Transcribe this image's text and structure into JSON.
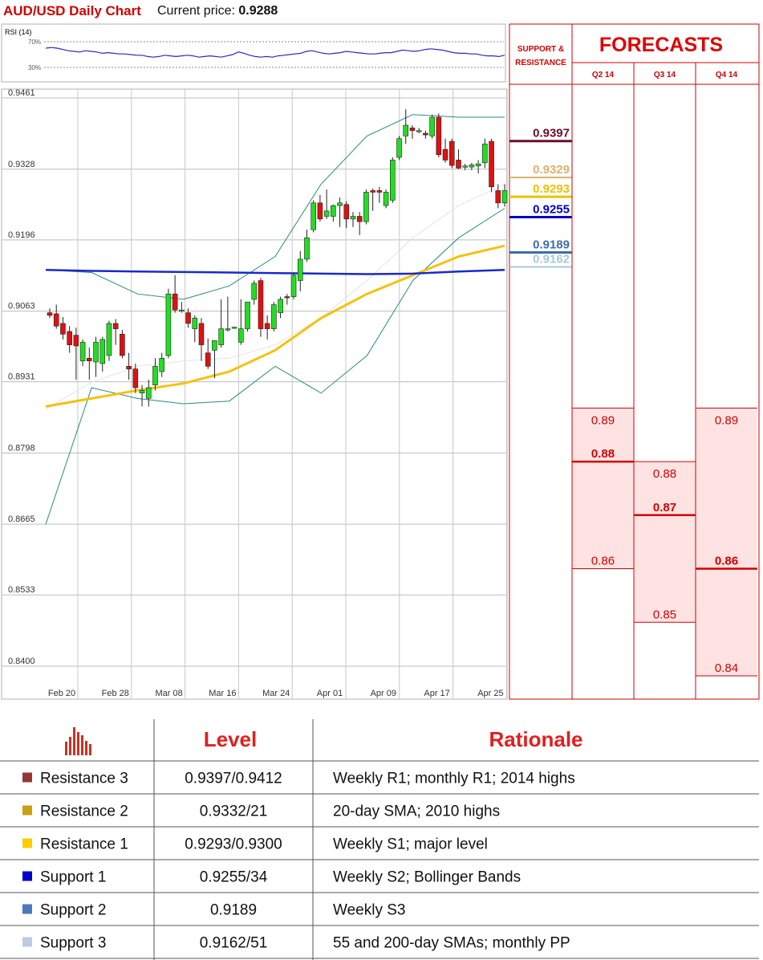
{
  "header": {
    "title": "AUD/USD Daily Chart",
    "price_label": "Current price:",
    "price_value": "0.9288"
  },
  "rsi": {
    "label": "RSI (14)",
    "levels": [
      "70%",
      "30%"
    ],
    "values": [
      60,
      61,
      60,
      58,
      56,
      55,
      54,
      56,
      55,
      54,
      52,
      53,
      52,
      51,
      51,
      50,
      49,
      49,
      47,
      46,
      47,
      49,
      48,
      47,
      48,
      49,
      48,
      46,
      47,
      48,
      47,
      46,
      48,
      50,
      54,
      52,
      49,
      47,
      46,
      47,
      46,
      48,
      49,
      50,
      51,
      52,
      55,
      56,
      54,
      52,
      51,
      52,
      53,
      55,
      54,
      53,
      52,
      51,
      51,
      52,
      53,
      53,
      55,
      57,
      56,
      55,
      56,
      58,
      59,
      58,
      57,
      55,
      53,
      52,
      52,
      51,
      51,
      49,
      48,
      48,
      47,
      49
    ]
  },
  "chart_data": {
    "type": "candlestick",
    "title": "AUD/USD Daily Chart",
    "y_ticks": [
      "0.9461",
      "0.9328",
      "0.9196",
      "0.9063",
      "0.8931",
      "0.8798",
      "0.8665",
      "0.8533",
      "0.8400"
    ],
    "ylim": [
      0.84,
      0.9461
    ],
    "x_ticks": [
      "Feb 20",
      "Feb 28",
      "Mar 08",
      "Mar 16",
      "Mar 24",
      "Apr 01",
      "Apr 09",
      "Apr 17",
      "Apr 25"
    ],
    "candles": [
      {
        "o": 0.906,
        "h": 0.9068,
        "l": 0.905,
        "c": 0.9055
      },
      {
        "o": 0.9058,
        "h": 0.9075,
        "l": 0.903,
        "c": 0.9035
      },
      {
        "o": 0.904,
        "h": 0.9052,
        "l": 0.901,
        "c": 0.902
      },
      {
        "o": 0.9025,
        "h": 0.9035,
        "l": 0.8985,
        "c": 0.9
      },
      {
        "o": 0.9018,
        "h": 0.9032,
        "l": 0.8935,
        "c": 0.8998
      },
      {
        "o": 0.897,
        "h": 0.901,
        "l": 0.896,
        "c": 0.9005
      },
      {
        "o": 0.8975,
        "h": 0.8995,
        "l": 0.8935,
        "c": 0.897
      },
      {
        "o": 0.8968,
        "h": 0.9015,
        "l": 0.894,
        "c": 0.9005
      },
      {
        "o": 0.8965,
        "h": 0.9015,
        "l": 0.895,
        "c": 0.901
      },
      {
        "o": 0.898,
        "h": 0.9045,
        "l": 0.897,
        "c": 0.904
      },
      {
        "o": 0.904,
        "h": 0.9048,
        "l": 0.9,
        "c": 0.903
      },
      {
        "o": 0.902,
        "h": 0.9028,
        "l": 0.8975,
        "c": 0.898
      },
      {
        "o": 0.896,
        "h": 0.8985,
        "l": 0.8935,
        "c": 0.8955
      },
      {
        "o": 0.8955,
        "h": 0.8965,
        "l": 0.891,
        "c": 0.892
      },
      {
        "o": 0.891,
        "h": 0.8925,
        "l": 0.8885,
        "c": 0.8915
      },
      {
        "o": 0.89,
        "h": 0.8935,
        "l": 0.8885,
        "c": 0.892
      },
      {
        "o": 0.8925,
        "h": 0.8975,
        "l": 0.8915,
        "c": 0.896
      },
      {
        "o": 0.895,
        "h": 0.8985,
        "l": 0.894,
        "c": 0.8975
      },
      {
        "o": 0.898,
        "h": 0.9105,
        "l": 0.8975,
        "c": 0.9095
      },
      {
        "o": 0.9095,
        "h": 0.913,
        "l": 0.906,
        "c": 0.9065
      },
      {
        "o": 0.9065,
        "h": 0.908,
        "l": 0.906,
        "c": 0.9065
      },
      {
        "o": 0.906,
        "h": 0.9068,
        "l": 0.9032,
        "c": 0.904
      },
      {
        "o": 0.903,
        "h": 0.9055,
        "l": 0.9005,
        "c": 0.905
      },
      {
        "o": 0.904,
        "h": 0.905,
        "l": 0.897,
        "c": 0.9
      },
      {
        "o": 0.8985,
        "h": 0.9012,
        "l": 0.8955,
        "c": 0.896
      },
      {
        "o": 0.899,
        "h": 0.9005,
        "l": 0.8938,
        "c": 0.9008
      },
      {
        "o": 0.9,
        "h": 0.9085,
        "l": 0.8995,
        "c": 0.903
      },
      {
        "o": 0.903,
        "h": 0.909,
        "l": 0.9025,
        "c": 0.903
      },
      {
        "o": 0.9032,
        "h": 0.9034,
        "l": 0.903,
        "c": 0.9033
      },
      {
        "o": 0.9005,
        "h": 0.9085,
        "l": 0.9,
        "c": 0.903
      },
      {
        "o": 0.903,
        "h": 0.908,
        "l": 0.9025,
        "c": 0.908
      },
      {
        "o": 0.9085,
        "h": 0.912,
        "l": 0.9075,
        "c": 0.9115
      },
      {
        "o": 0.912,
        "h": 0.9125,
        "l": 0.9015,
        "c": 0.903
      },
      {
        "o": 0.904,
        "h": 0.9055,
        "l": 0.901,
        "c": 0.903
      },
      {
        "o": 0.903,
        "h": 0.908,
        "l": 0.9025,
        "c": 0.9075
      },
      {
        "o": 0.906,
        "h": 0.909,
        "l": 0.905,
        "c": 0.9085
      },
      {
        "o": 0.909,
        "h": 0.9095,
        "l": 0.9075,
        "c": 0.9088
      },
      {
        "o": 0.909,
        "h": 0.9135,
        "l": 0.9085,
        "c": 0.913
      },
      {
        "o": 0.912,
        "h": 0.9175,
        "l": 0.91,
        "c": 0.916
      },
      {
        "o": 0.916,
        "h": 0.9215,
        "l": 0.9155,
        "c": 0.92
      },
      {
        "o": 0.9215,
        "h": 0.927,
        "l": 0.921,
        "c": 0.9265
      },
      {
        "o": 0.9265,
        "h": 0.928,
        "l": 0.923,
        "c": 0.9235
      },
      {
        "o": 0.924,
        "h": 0.929,
        "l": 0.9235,
        "c": 0.925
      },
      {
        "o": 0.924,
        "h": 0.9262,
        "l": 0.923,
        "c": 0.926
      },
      {
        "o": 0.926,
        "h": 0.9275,
        "l": 0.922,
        "c": 0.9265
      },
      {
        "o": 0.9262,
        "h": 0.9268,
        "l": 0.9218,
        "c": 0.9235
      },
      {
        "o": 0.9235,
        "h": 0.9248,
        "l": 0.922,
        "c": 0.924
      },
      {
        "o": 0.924,
        "h": 0.9248,
        "l": 0.9205,
        "c": 0.923
      },
      {
        "o": 0.923,
        "h": 0.929,
        "l": 0.9225,
        "c": 0.9285
      },
      {
        "o": 0.9288,
        "h": 0.9292,
        "l": 0.925,
        "c": 0.9285
      },
      {
        "o": 0.9288,
        "h": 0.9295,
        "l": 0.9265,
        "c": 0.9285
      },
      {
        "o": 0.926,
        "h": 0.929,
        "l": 0.9255,
        "c": 0.9285
      },
      {
        "o": 0.927,
        "h": 0.935,
        "l": 0.9265,
        "c": 0.9345
      },
      {
        "o": 0.935,
        "h": 0.939,
        "l": 0.9345,
        "c": 0.9385
      },
      {
        "o": 0.939,
        "h": 0.944,
        "l": 0.9375,
        "c": 0.941
      },
      {
        "o": 0.9405,
        "h": 0.941,
        "l": 0.9385,
        "c": 0.94
      },
      {
        "o": 0.94,
        "h": 0.9405,
        "l": 0.9395,
        "c": 0.94
      },
      {
        "o": 0.9395,
        "h": 0.94,
        "l": 0.9385,
        "c": 0.9392
      },
      {
        "o": 0.939,
        "h": 0.943,
        "l": 0.9385,
        "c": 0.9425
      },
      {
        "o": 0.9425,
        "h": 0.9432,
        "l": 0.935,
        "c": 0.9355
      },
      {
        "o": 0.9365,
        "h": 0.9385,
        "l": 0.934,
        "c": 0.9345
      },
      {
        "o": 0.938,
        "h": 0.9385,
        "l": 0.933,
        "c": 0.9335
      },
      {
        "o": 0.9345,
        "h": 0.9365,
        "l": 0.9328,
        "c": 0.933
      },
      {
        "o": 0.9332,
        "h": 0.9338,
        "l": 0.9326,
        "c": 0.9334
      },
      {
        "o": 0.9332,
        "h": 0.934,
        "l": 0.9326,
        "c": 0.9336
      },
      {
        "o": 0.9334,
        "h": 0.9345,
        "l": 0.932,
        "c": 0.9338
      },
      {
        "o": 0.934,
        "h": 0.9385,
        "l": 0.933,
        "c": 0.9375
      },
      {
        "o": 0.938,
        "h": 0.9385,
        "l": 0.9285,
        "c": 0.9295
      },
      {
        "o": 0.9288,
        "h": 0.93,
        "l": 0.9255,
        "c": 0.9265
      },
      {
        "o": 0.9265,
        "h": 0.93,
        "l": 0.9258,
        "c": 0.9288
      }
    ],
    "sma_thick_blue": [
      0.914,
      0.9138,
      0.9137,
      0.9136,
      0.9135,
      0.9134,
      0.9133,
      0.9132,
      0.9133,
      0.9137,
      0.914
    ],
    "sma_yellow": [
      0.8885,
      0.89,
      0.8915,
      0.8928,
      0.895,
      0.899,
      0.905,
      0.9095,
      0.913,
      0.9165,
      0.9185
    ],
    "sma_gray": [
      0.888,
      0.893,
      0.896,
      0.897,
      0.8975,
      0.9,
      0.905,
      0.912,
      0.92,
      0.926,
      0.93
    ],
    "bb_upper": [
      0.914,
      0.9135,
      0.9095,
      0.9085,
      0.911,
      0.9165,
      0.93,
      0.939,
      0.943,
      0.9425,
      0.9425
    ],
    "bb_lower": [
      0.8665,
      0.892,
      0.89,
      0.889,
      0.8895,
      0.896,
      0.891,
      0.898,
      0.912,
      0.92,
      0.9255
    ]
  },
  "levels_panel": {
    "title": "SUPPORT & RESISTANCE",
    "levels": [
      {
        "value": "0.9397",
        "color": "#6a0f2a"
      },
      {
        "value": "0.9329",
        "color": "#d9b26c"
      },
      {
        "value": "0.9293",
        "color": "#f0c000"
      },
      {
        "value": "0.9255",
        "color": "#0000cc"
      },
      {
        "value": "0.9189",
        "color": "#3c6ea8"
      },
      {
        "value": "0.9162",
        "color": "#a8c8de"
      }
    ]
  },
  "forecasts": {
    "title": "FORECASTS",
    "columns": [
      {
        "label": "Q2 14",
        "high": "0.89",
        "mid": "0.88",
        "low": "0.86"
      },
      {
        "label": "Q3 14",
        "high": "0.88",
        "mid": "0.87",
        "low": "0.85"
      },
      {
        "label": "Q4 14",
        "high": "0.89",
        "mid": "0.86",
        "low": "0.84"
      }
    ]
  },
  "table": {
    "headers": {
      "level": "Level",
      "rationale": "Rationale"
    },
    "rows": [
      {
        "name": "Resistance 3",
        "color": "#953735",
        "level": "0.9397/0.9412",
        "rationale": "Weekly R1; monthly R1; 2014 highs"
      },
      {
        "name": "Resistance 2",
        "color": "#c9a012",
        "level": "0.9332/21",
        "rationale": "20-day SMA; 2010 highs"
      },
      {
        "name": "Resistance 1",
        "color": "#ffcc00",
        "level": "0.9293/0.9300",
        "rationale": "Weekly S1; major level"
      },
      {
        "name": "Support 1",
        "color": "#0000cc",
        "level": "0.9255/34",
        "rationale": "Weekly S2; Bollinger Bands"
      },
      {
        "name": "Support 2",
        "color": "#4a7ab8",
        "level": "0.9189",
        "rationale": "Weekly S3"
      },
      {
        "name": "Support 3",
        "color": "#b8cce4",
        "level": "0.9162/51",
        "rationale": "55 and 200-day SMAs; monthly PP"
      }
    ]
  }
}
